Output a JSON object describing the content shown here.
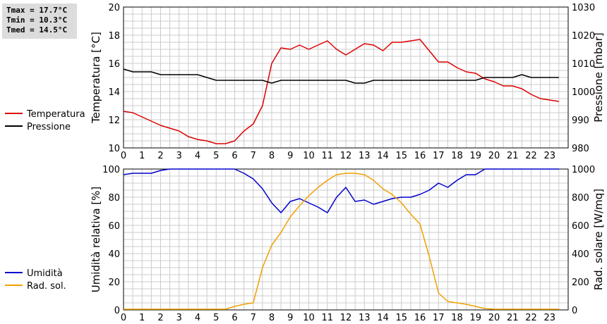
{
  "stats": {
    "tmax": "Tmax = 17.7°C",
    "tmin": "Tmin = 10.3°C",
    "tmed": "Tmed = 14.5°C"
  },
  "chart_data": [
    {
      "type": "line",
      "x_ticks": [
        "0",
        "1",
        "2",
        "3",
        "4",
        "5",
        "6",
        "7",
        "8",
        "9",
        "10",
        "11",
        "12",
        "13",
        "14",
        "15",
        "16",
        "17",
        "18",
        "19",
        "20",
        "21",
        "22",
        "23"
      ],
      "xlim": [
        0,
        24
      ],
      "ylabel_left": "Temperatura [°C]",
      "ylabel_right": "Pressione [mbar]",
      "ylim_left": [
        10,
        20
      ],
      "ylim_right": [
        980,
        1030
      ],
      "yticks_left": [
        "10",
        "12",
        "14",
        "16",
        "18",
        "20"
      ],
      "yticks_right": [
        "980",
        "990",
        "1000",
        "1010",
        "1020",
        "1030"
      ],
      "grid": true,
      "legend_position": "left",
      "series": [
        {
          "name": "Temperatura",
          "axis": "left",
          "color": "#dd0000",
          "x": [
            0,
            0.5,
            1,
            1.5,
            2,
            2.5,
            3,
            3.5,
            4,
            4.5,
            5,
            5.5,
            6,
            6.5,
            7,
            7.5,
            8,
            8.5,
            9,
            9.5,
            10,
            10.5,
            11,
            11.5,
            12,
            12.5,
            13,
            13.5,
            14,
            14.5,
            15,
            15.5,
            16,
            16.5,
            17,
            17.5,
            18,
            18.5,
            19,
            19.5,
            20,
            20.5,
            21,
            21.5,
            22,
            22.5,
            23,
            23.5
          ],
          "values": [
            12.6,
            12.5,
            12.2,
            11.9,
            11.6,
            11.4,
            11.2,
            10.8,
            10.6,
            10.5,
            10.3,
            10.3,
            10.5,
            11.2,
            11.7,
            13.0,
            16.0,
            17.1,
            17.0,
            17.3,
            17.0,
            17.3,
            17.6,
            17.0,
            16.6,
            17.0,
            17.4,
            17.3,
            16.9,
            17.5,
            17.5,
            17.6,
            17.7,
            16.9,
            16.1,
            16.1,
            15.7,
            15.4,
            15.3,
            14.9,
            14.7,
            14.4,
            14.4,
            14.2,
            13.8,
            13.5,
            13.4,
            13.3
          ]
        },
        {
          "name": "Pressione",
          "axis": "right",
          "color": "#000000",
          "x": [
            0,
            0.5,
            1,
            1.5,
            2,
            2.5,
            3,
            3.5,
            4,
            4.5,
            5,
            5.5,
            6,
            6.5,
            7,
            7.5,
            8,
            8.5,
            9,
            9.5,
            10,
            10.5,
            11,
            11.5,
            12,
            12.5,
            13,
            13.5,
            14,
            14.5,
            15,
            15.5,
            16,
            16.5,
            17,
            17.5,
            18,
            18.5,
            19,
            19.5,
            20,
            20.5,
            21,
            21.5,
            22,
            22.5,
            23,
            23.5
          ],
          "values": [
            1008,
            1007,
            1007,
            1007,
            1006,
            1006,
            1006,
            1006,
            1006,
            1005,
            1004,
            1004,
            1004,
            1004,
            1004,
            1004,
            1003,
            1004,
            1004,
            1004,
            1004,
            1004,
            1004,
            1004,
            1004,
            1003,
            1003,
            1004,
            1004,
            1004,
            1004,
            1004,
            1004,
            1004,
            1004,
            1004,
            1004,
            1004,
            1004,
            1005,
            1005,
            1005,
            1005,
            1006,
            1005,
            1005,
            1005,
            1005
          ]
        }
      ]
    },
    {
      "type": "line",
      "x_ticks": [
        "0",
        "1",
        "2",
        "3",
        "4",
        "5",
        "6",
        "7",
        "8",
        "9",
        "10",
        "11",
        "12",
        "13",
        "14",
        "15",
        "16",
        "17",
        "18",
        "19",
        "20",
        "21",
        "22",
        "23"
      ],
      "xlim": [
        0,
        24
      ],
      "ylabel_left": "Umidità relativa [%]",
      "ylabel_right": "Rad. solare [W/mq]",
      "ylim_left": [
        0,
        100
      ],
      "ylim_right": [
        0,
        1000
      ],
      "yticks_left": [
        "0",
        "20",
        "40",
        "60",
        "80",
        "100"
      ],
      "yticks_right": [
        "0",
        "200",
        "400",
        "600",
        "800",
        "1000"
      ],
      "grid": true,
      "legend_position": "left",
      "series": [
        {
          "name": "Umidità",
          "axis": "left",
          "color": "#0000cc",
          "x": [
            0,
            0.5,
            1,
            1.5,
            2,
            2.5,
            3,
            3.5,
            4,
            4.5,
            5,
            5.5,
            6,
            6.5,
            7,
            7.5,
            8,
            8.5,
            9,
            9.5,
            10,
            10.5,
            11,
            11.5,
            12,
            12.5,
            13,
            13.5,
            14,
            14.5,
            15,
            15.5,
            16,
            16.5,
            17,
            17.5,
            18,
            18.5,
            19,
            19.5,
            20,
            20.5,
            21,
            21.5,
            22,
            22.5,
            23,
            23.5
          ],
          "values": [
            96,
            97,
            97,
            97,
            99,
            100,
            100,
            100,
            100,
            100,
            100,
            100,
            100,
            97,
            93,
            86,
            76,
            69,
            77,
            79,
            76,
            73,
            69,
            80,
            87,
            77,
            78,
            75,
            77,
            79,
            80,
            80,
            82,
            85,
            90,
            87,
            92,
            96,
            96,
            100,
            100,
            100,
            100,
            100,
            100,
            100,
            100,
            100
          ]
        },
        {
          "name": "Rad. sol.",
          "axis": "right",
          "color": "#f0a000",
          "x": [
            0,
            0.5,
            1,
            1.5,
            2,
            2.5,
            3,
            3.5,
            4,
            4.5,
            5,
            5.5,
            6,
            6.5,
            7,
            7.5,
            8,
            8.5,
            9,
            9.5,
            10,
            10.5,
            11,
            11.5,
            12,
            12.5,
            13,
            13.5,
            14,
            14.5,
            15,
            15.5,
            16,
            16.5,
            17,
            17.5,
            18,
            18.5,
            19,
            19.5,
            20,
            20.5,
            21,
            21.5,
            22,
            22.5,
            23,
            23.5
          ],
          "values": [
            5,
            5,
            5,
            5,
            5,
            5,
            5,
            5,
            5,
            5,
            5,
            5,
            25,
            40,
            50,
            300,
            460,
            550,
            660,
            740,
            810,
            870,
            920,
            960,
            970,
            970,
            960,
            920,
            860,
            820,
            760,
            680,
            610,
            380,
            120,
            60,
            50,
            40,
            25,
            10,
            5,
            5,
            5,
            5,
            5,
            5,
            5,
            5
          ]
        }
      ]
    }
  ]
}
